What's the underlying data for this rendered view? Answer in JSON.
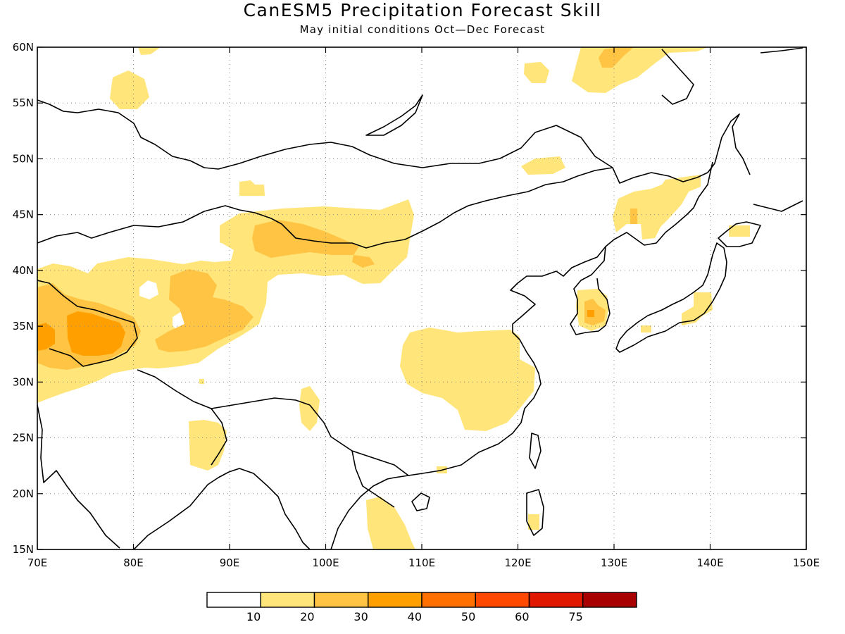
{
  "title": "CanESM5 Precipitation Forecast Skill",
  "subtitle": "May initial conditions  Oct—Dec Forecast",
  "map": {
    "lon_range": [
      70,
      150
    ],
    "lat_range": [
      15,
      60
    ],
    "lat_labels": [
      "60N",
      "55N",
      "50N",
      "45N",
      "40N",
      "35N",
      "30N",
      "25N",
      "20N",
      "15N"
    ],
    "lon_labels": [
      "70E",
      "80E",
      "90E",
      "100E",
      "110E",
      "120E",
      "130E",
      "140E",
      "150E"
    ],
    "grid": "dotted"
  },
  "colorbar": {
    "labels": [
      "10",
      "20",
      "30",
      "40",
      "50",
      "60",
      "75"
    ],
    "colors": [
      "#ffffff",
      "#ffe57a",
      "#ffc443",
      "#ffa000",
      "#ff7000",
      "#ff4800",
      "#e01800",
      "#a80000"
    ]
  },
  "colors": {
    "skill_10_20": "#ffe57a",
    "skill_20_30": "#ffc443",
    "skill_30_40": "#ffa000",
    "coastline": "#000000"
  }
}
